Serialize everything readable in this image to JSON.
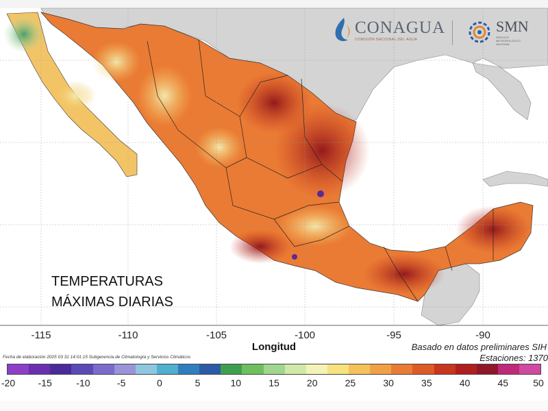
{
  "map": {
    "overlay_title_line1": "TEMPERATURAS",
    "overlay_title_line2": "MÁXIMAS DIARIAS",
    "x_axis_label": "Longitud",
    "x_ticks": [
      "-115",
      "-110",
      "-105",
      "-100",
      "-95",
      "-90"
    ],
    "basado_text": "Basado en datos preliminares SIH",
    "estaciones_text": "Estaciones:  1370",
    "footnote": "Fecha de elaboración 2025 03 31 14:01:15 Subgerencia de Climatología y Servicios Climáticos",
    "colorbar_labels": [
      "-20",
      "-15",
      "-10",
      "-5",
      "0",
      "5",
      "10",
      "15",
      "20",
      "25",
      "30",
      "35",
      "40",
      "45",
      "50"
    ],
    "colorbar_colors": [
      "#8b3fc9",
      "#6a2fb0",
      "#4a2a9a",
      "#5a4ab8",
      "#7a6ccc",
      "#9a94d8",
      "#8fc6e0",
      "#4fb0d0",
      "#2f7fbf",
      "#2a5aa8",
      "#3f9f4f",
      "#6fbf5f",
      "#9fd78f",
      "#cfe9a8",
      "#f3f3b8",
      "#f7e27f",
      "#f5c25a",
      "#f2a046",
      "#ea7b34",
      "#de5a26",
      "#c8361e",
      "#b01e1e",
      "#90162a",
      "#c0287a",
      "#d04aa0"
    ],
    "colors": {
      "ocean": "#ffffff",
      "land_us": "#d8d8d8",
      "hot": "#c8361e",
      "warm": "#ea7b34",
      "mild": "#f5c25a"
    }
  },
  "logos": {
    "conagua": "CONAGUA",
    "conagua_sub": "COMISIÓN NACIONAL DEL AGUA",
    "smn": "SMN",
    "smn_sub_1": "SERVICIO",
    "smn_sub_2": "METEOROLÓGICO",
    "smn_sub_3": "NACIONAL"
  }
}
